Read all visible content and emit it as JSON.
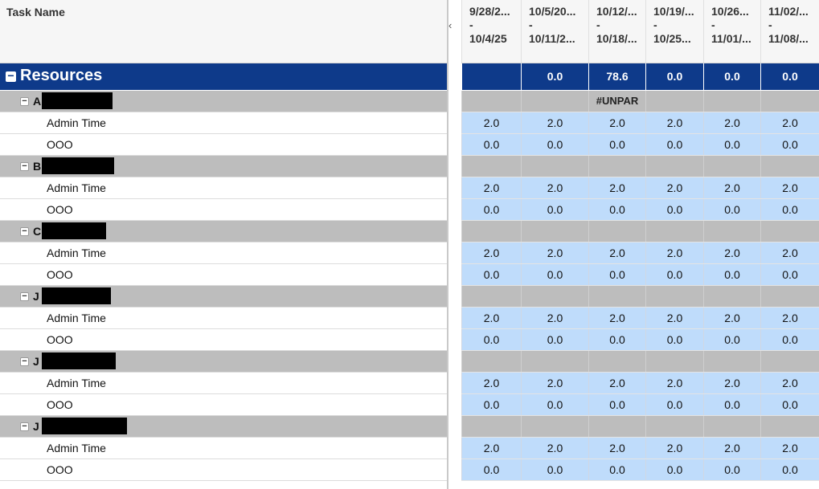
{
  "header": {
    "task_name": "Task Name",
    "columns": [
      {
        "l1": "9/28/2...",
        "l2": "-",
        "l3": "10/4/25"
      },
      {
        "l1": "10/5/20...",
        "l2": "-",
        "l3": "10/11/2..."
      },
      {
        "l1": "10/12/...",
        "l2": "-",
        "l3": "10/18/..."
      },
      {
        "l1": "10/19/...",
        "l2": "-",
        "l3": "10/25..."
      },
      {
        "l1": "10/26...",
        "l2": "-",
        "l3": "11/01/..."
      },
      {
        "l1": "11/02/...",
        "l2": "-",
        "l3": "11/08/..."
      }
    ]
  },
  "splitter": {
    "arrow": "‹"
  },
  "resources": {
    "label": "Resources",
    "values": [
      "",
      "0.0",
      "78.6",
      "0.0",
      "0.0",
      "0.0"
    ]
  },
  "groups": [
    {
      "initial": "A",
      "redact_w": 88,
      "values": [
        "",
        "",
        "#UNPAR",
        "",
        "",
        ""
      ]
    },
    {
      "initial": "B",
      "redact_w": 90,
      "values": [
        "",
        "",
        "",
        "",
        "",
        ""
      ]
    },
    {
      "initial": "C",
      "redact_w": 80,
      "values": [
        "",
        "",
        "",
        "",
        "",
        ""
      ]
    },
    {
      "initial": "J",
      "redact_w": 86,
      "values": [
        "",
        "",
        "",
        "",
        "",
        ""
      ]
    },
    {
      "initial": "J",
      "redact_w": 92,
      "values": [
        "",
        "",
        "",
        "",
        "",
        ""
      ]
    },
    {
      "initial": "J",
      "redact_w": 106,
      "values": [
        "",
        "",
        "",
        "",
        "",
        ""
      ]
    }
  ],
  "tasks": [
    {
      "label": "Admin Time",
      "values": [
        "2.0",
        "2.0",
        "2.0",
        "2.0",
        "2.0",
        "2.0"
      ]
    },
    {
      "label": "OOO",
      "values": [
        "0.0",
        "0.0",
        "0.0",
        "0.0",
        "0.0",
        "0.0"
      ]
    }
  ],
  "icons": {
    "collapse": "minus-icon"
  }
}
